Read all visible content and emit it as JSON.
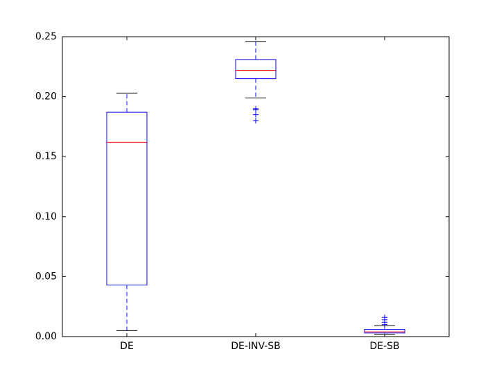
{
  "chart_data": {
    "type": "box",
    "categories": [
      "DE",
      "DE-INV-SB",
      "DE-SB"
    ],
    "boxes": [
      {
        "whislo": 0.005,
        "q1": 0.043,
        "med": 0.162,
        "q3": 0.187,
        "whishi": 0.203,
        "fliers": []
      },
      {
        "whislo": 0.199,
        "q1": 0.215,
        "med": 0.222,
        "q3": 0.231,
        "whishi": 0.246,
        "fliers": [
          0.19,
          0.189,
          0.185,
          0.18
        ]
      },
      {
        "whislo": 0.002,
        "q1": 0.003,
        "med": 0.004,
        "q3": 0.006,
        "whishi": 0.009,
        "fliers": [
          0.01,
          0.012,
          0.014,
          0.016
        ]
      }
    ],
    "box_color": "#0000ff",
    "median_color": "#ff0000",
    "cap_color": "#000000",
    "flier_color": "#0000ff",
    "ylim": [
      0,
      0.25
    ],
    "yticks": [
      {
        "value": 0,
        "label": "0.00"
      },
      {
        "value": 0.05,
        "label": "0.05"
      },
      {
        "value": 0.1,
        "label": "0.10"
      },
      {
        "value": 0.15,
        "label": "0.15"
      },
      {
        "value": 0.2,
        "label": "0.20"
      },
      {
        "value": 0.25,
        "label": "0.25"
      }
    ]
  }
}
